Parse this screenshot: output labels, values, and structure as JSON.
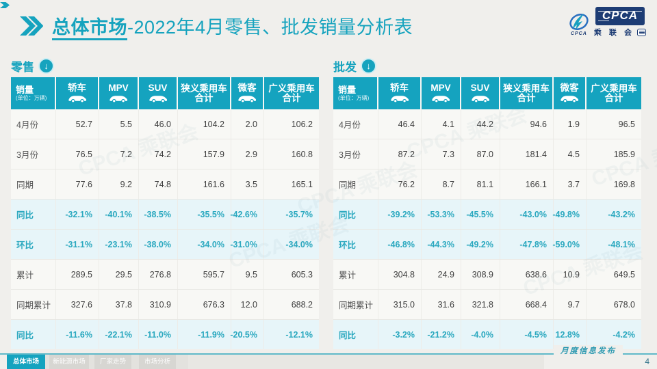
{
  "header": {
    "title_primary": "总体市场",
    "title_secondary": "-2022年4月零售、批发销量分析表",
    "logo": {
      "acronym": "CPCA",
      "name_cn": "乘 联 会",
      "mark_caption": "CPCA"
    }
  },
  "columns": {
    "sales_label": "销量",
    "sales_unit": "(单位：万辆)",
    "cols": [
      {
        "label": "轿车",
        "icon": "sedan-icon"
      },
      {
        "label": "MPV",
        "icon": "mpv-icon"
      },
      {
        "label": "SUV",
        "icon": "suv-icon"
      },
      {
        "label": "狭义乘用车\n合计",
        "icon": null
      },
      {
        "label": "微客",
        "icon": "minibus-icon"
      },
      {
        "label": "广义乘用车\n合计",
        "icon": null
      }
    ]
  },
  "tables": [
    {
      "section_label": "零售",
      "rows": [
        {
          "label": "4月份",
          "highlight": false,
          "values": [
            "52.7",
            "5.5",
            "46.0",
            "104.2",
            "2.0",
            "106.2"
          ]
        },
        {
          "label": "3月份",
          "highlight": false,
          "values": [
            "76.5",
            "7.2",
            "74.2",
            "157.9",
            "2.9",
            "160.8"
          ]
        },
        {
          "label": "同期",
          "highlight": false,
          "values": [
            "77.6",
            "9.2",
            "74.8",
            "161.6",
            "3.5",
            "165.1"
          ]
        },
        {
          "label": "同比",
          "highlight": true,
          "values": [
            "-32.1%",
            "-40.1%",
            "-38.5%",
            "-35.5%",
            "-42.6%",
            "-35.7%"
          ]
        },
        {
          "label": "环比",
          "highlight": true,
          "values": [
            "-31.1%",
            "-23.1%",
            "-38.0%",
            "-34.0%",
            "-31.0%",
            "-34.0%"
          ]
        },
        {
          "label": "累计",
          "highlight": false,
          "values": [
            "289.5",
            "29.5",
            "276.8",
            "595.7",
            "9.5",
            "605.3"
          ]
        },
        {
          "label": "同期累计",
          "highlight": false,
          "values": [
            "327.6",
            "37.8",
            "310.9",
            "676.3",
            "12.0",
            "688.2"
          ]
        },
        {
          "label": "同比",
          "highlight": true,
          "values": [
            "-11.6%",
            "-22.1%",
            "-11.0%",
            "-11.9%",
            "-20.5%",
            "-12.1%"
          ]
        }
      ]
    },
    {
      "section_label": "批发",
      "rows": [
        {
          "label": "4月份",
          "highlight": false,
          "values": [
            "46.4",
            "4.1",
            "44.2",
            "94.6",
            "1.9",
            "96.5"
          ]
        },
        {
          "label": "3月份",
          "highlight": false,
          "values": [
            "87.2",
            "7.3",
            "87.0",
            "181.4",
            "4.5",
            "185.9"
          ]
        },
        {
          "label": "同期",
          "highlight": false,
          "values": [
            "76.2",
            "8.7",
            "81.1",
            "166.1",
            "3.7",
            "169.8"
          ]
        },
        {
          "label": "同比",
          "highlight": true,
          "values": [
            "-39.2%",
            "-53.3%",
            "-45.5%",
            "-43.0%",
            "-49.8%",
            "-43.2%"
          ]
        },
        {
          "label": "环比",
          "highlight": true,
          "values": [
            "-46.8%",
            "-44.3%",
            "-49.2%",
            "-47.8%",
            "-59.0%",
            "-48.1%"
          ]
        },
        {
          "label": "累计",
          "highlight": false,
          "values": [
            "304.8",
            "24.9",
            "308.9",
            "638.6",
            "10.9",
            "649.5"
          ]
        },
        {
          "label": "同期累计",
          "highlight": false,
          "values": [
            "315.0",
            "31.6",
            "321.8",
            "668.4",
            "9.7",
            "678.0"
          ]
        },
        {
          "label": "同比",
          "highlight": true,
          "values": [
            "-3.2%",
            "-21.2%",
            "-4.0%",
            "-4.5%",
            "12.8%",
            "-4.2%"
          ]
        }
      ]
    }
  ],
  "footer": {
    "note": "月度信息发布",
    "page_number": "4",
    "tabs": [
      {
        "label": "总体市场",
        "active": true
      },
      {
        "label": "新能源市场",
        "active": false
      },
      {
        "label": "厂家走势",
        "active": false
      },
      {
        "label": "市场分析",
        "active": false
      }
    ]
  },
  "watermark": "CPCA 乘联会",
  "colors": {
    "accent": "#16a3be",
    "header_bg": "#15a3bf",
    "highlight_bg": "#e7f5f9",
    "highlight_text": "#2aa8bf",
    "logo_navy": "#1d3c74",
    "page_bg": "#f0efec"
  }
}
